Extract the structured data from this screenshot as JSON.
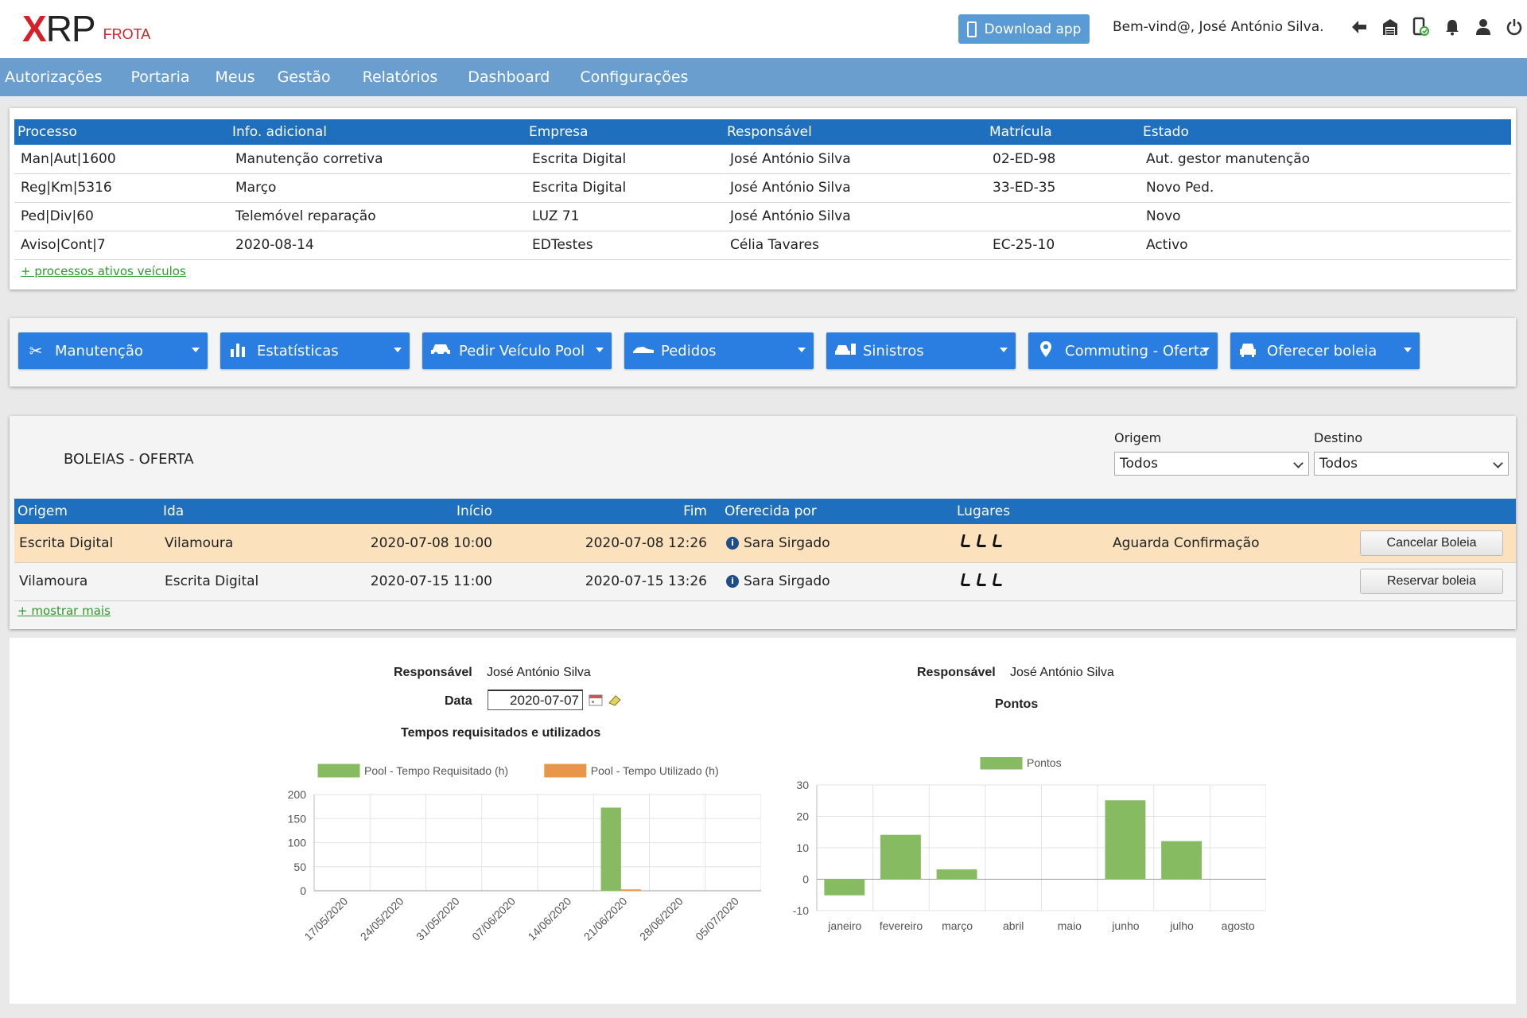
{
  "header": {
    "logo": "XRP",
    "logo_sub": "FROTA",
    "download_label": "Download app",
    "welcome": "Bem-vind@, José António Silva.",
    "icons": [
      "back-arrow-icon",
      "garage-icon",
      "phone-sync-icon",
      "bell-icon",
      "user-icon",
      "power-icon"
    ]
  },
  "nav": {
    "items": [
      "Autorizações",
      "Portaria",
      "Meus",
      "Gestão",
      "Relatórios",
      "Dashboard",
      "Configurações"
    ]
  },
  "processes": {
    "columns": [
      "Processo",
      "Info. adicional",
      "Empresa",
      "Responsável",
      "Matrícula",
      "Estado"
    ],
    "rows": [
      [
        "Man|Aut|1600",
        "Manutenção corretiva",
        "Escrita Digital",
        "José António Silva",
        "02-ED-98",
        "Aut. gestor manutenção"
      ],
      [
        "Reg|Km|5316",
        "Março",
        "Escrita Digital",
        "José António Silva",
        "33-ED-35",
        "Novo Ped."
      ],
      [
        "Ped|Div|60",
        "Telemóvel reparação",
        "LUZ 71",
        "José António Silva",
        "",
        "Novo"
      ],
      [
        "Aviso|Cont|7",
        "2020-08-14",
        "EDTestes",
        "Célia Tavares",
        "EC-25-10",
        "Activo"
      ]
    ],
    "more_link": "+ processos ativos veículos"
  },
  "actions": [
    {
      "label": "Manutenção",
      "icon": "tools-icon"
    },
    {
      "label": "Estatísticas",
      "icon": "bar-chart-icon"
    },
    {
      "label": "Pedir Veículo Pool",
      "icon": "car-icon"
    },
    {
      "label": "Pedidos",
      "icon": "car-side-icon"
    },
    {
      "label": "Sinistros",
      "icon": "crashed-car-icon"
    },
    {
      "label": "Commuting - Oferta",
      "icon": "map-marker-icon"
    },
    {
      "label": "Oferecer boleia",
      "icon": "carpool-icon"
    }
  ],
  "boleias": {
    "title": "BOLEIAS - OFERTA",
    "origem_label": "Origem",
    "origem_value": "Todos",
    "destino_label": "Destino",
    "destino_value": "Todos",
    "columns": [
      "Origem",
      "Ida",
      "Início",
      "Fim",
      "Oferecida por",
      "Lugares"
    ],
    "rows": [
      {
        "origem": "Escrita Digital",
        "ida": "Vilamoura",
        "inicio": "2020-07-08 10:00",
        "fim": "2020-07-08 12:26",
        "por": "Sara Sirgado",
        "status": "Aguarda Confirmação",
        "action": "Cancelar Boleia",
        "highlight": true
      },
      {
        "origem": "Vilamoura",
        "ida": "Escrita Digital",
        "inicio": "2020-07-15 11:00",
        "fim": "2020-07-15 13:26",
        "por": "Sara Sirgado",
        "status": "",
        "action": "Reservar boleia",
        "highlight": false
      }
    ],
    "more_link": "+ mostrar mais"
  },
  "left_panel": {
    "resp_label": "Responsável",
    "resp_value": "José António Silva",
    "data_label": "Data",
    "data_value": "2020-07-07",
    "chart_title": "Tempos requisitados e utilizados"
  },
  "right_panel": {
    "resp_label": "Responsável",
    "resp_value": "José António Silva",
    "chart_title": "Pontos"
  },
  "chart_data": [
    {
      "type": "bar",
      "title": "Tempos requisitados e utilizados",
      "categories": [
        "17/05/2020",
        "24/05/2020",
        "31/05/2020",
        "07/06/2020",
        "14/06/2020",
        "21/06/2020",
        "28/06/2020",
        "05/07/2020"
      ],
      "series": [
        {
          "name": "Pool - Tempo Requisitado (h)",
          "values": [
            0,
            0,
            0,
            0,
            0,
            172,
            0,
            0
          ],
          "color": "#87bb62"
        },
        {
          "name": "Pool - Tempo Utilizado (h)",
          "values": [
            0,
            0,
            0,
            0,
            0,
            2,
            0,
            0
          ],
          "color": "#e8974a"
        }
      ],
      "ylim": [
        0,
        200
      ],
      "yticks": [
        0,
        50,
        100,
        150,
        200
      ],
      "grid": true,
      "legend": "top"
    },
    {
      "type": "bar",
      "title": "Pontos",
      "categories": [
        "janeiro",
        "fevereiro",
        "março",
        "abril",
        "maio",
        "junho",
        "julho",
        "agosto"
      ],
      "series": [
        {
          "name": "Pontos",
          "values": [
            -5,
            14,
            3,
            0,
            0,
            25,
            12,
            0
          ],
          "color": "#87bb62"
        }
      ],
      "ylim": [
        -10,
        30
      ],
      "yticks": [
        -10,
        0,
        10,
        20,
        30
      ],
      "grid": true,
      "legend": "top"
    }
  ]
}
